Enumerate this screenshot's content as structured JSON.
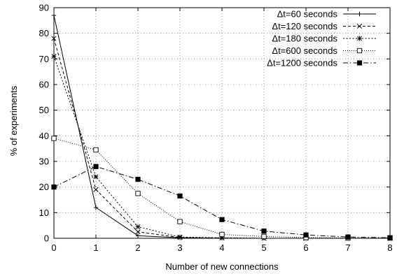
{
  "chart_data": {
    "type": "line",
    "xlabel": "Number of new connections",
    "ylabel": "% of experiments",
    "xlim": [
      0,
      8
    ],
    "ylim": [
      0,
      90
    ],
    "xticks": [
      0,
      1,
      2,
      3,
      4,
      5,
      6,
      7,
      8
    ],
    "yticks": [
      0,
      10,
      20,
      30,
      40,
      50,
      60,
      70,
      80,
      90
    ],
    "grid": true,
    "legend_position": "top-right",
    "series": [
      {
        "name": "Δt=60 seconds",
        "line_style": "solid",
        "marker": "plus",
        "x": [
          0,
          1,
          2,
          3,
          4,
          5,
          6,
          7,
          8
        ],
        "y": [
          87,
          12,
          1,
          0.2,
          0,
          0,
          0,
          0,
          0
        ]
      },
      {
        "name": "Δt=120 seconds",
        "line_style": "dashed",
        "marker": "cross",
        "x": [
          0,
          1,
          2,
          3,
          4,
          5,
          6,
          7,
          8
        ],
        "y": [
          78,
          19,
          2.5,
          0.3,
          0.1,
          0,
          0,
          0,
          0
        ]
      },
      {
        "name": "Δt=180 seconds",
        "line_style": "dotted",
        "marker": "asterisk",
        "x": [
          0,
          1,
          2,
          3,
          4,
          5,
          6,
          7,
          8
        ],
        "y": [
          71,
          24,
          4.5,
          0.5,
          0.2,
          0,
          0,
          0,
          0
        ]
      },
      {
        "name": "Δt=600 seconds",
        "line_style": "fine-dotted",
        "marker": "open-square",
        "x": [
          0,
          1,
          2,
          3,
          4,
          5,
          6,
          7,
          8
        ],
        "y": [
          39,
          34.5,
          17.5,
          6.5,
          1.5,
          0.7,
          0.3,
          0.1,
          0.1
        ]
      },
      {
        "name": "Δt=1200 seconds",
        "line_style": "dash-dot",
        "marker": "filled-square",
        "x": [
          0,
          1,
          2,
          3,
          4,
          5,
          6,
          7,
          8
        ],
        "y": [
          20,
          28,
          23,
          16.5,
          7.3,
          2.8,
          1.3,
          0.5,
          0.2
        ]
      }
    ]
  }
}
